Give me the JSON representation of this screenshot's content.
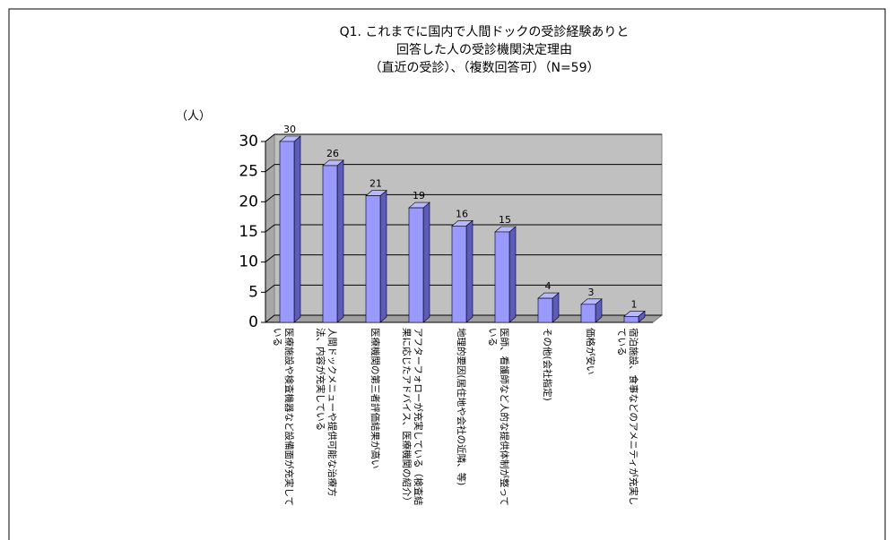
{
  "chart_data": {
    "type": "bar",
    "title": [
      "Q1. これまでに国内で人間ドックの受診経験ありと",
      "回答した人の受診機関決定理由",
      "（直近の受診）、（複数回答可）（N=59）"
    ],
    "y_label": "（人）",
    "categories": [
      "医療施設や検査機器など設備面が充実している",
      "人間ドックメニューや提供可能な治療方法、内容が充実している",
      "医療機関の第三者評価結果が高い",
      "アフターフォローが充実している（検査結果に応じたアドバイス、医療機関の紹介）",
      "地理的要因(居住地や会社の近隣、等)",
      "医師、看護師など人的な提供体制が整っている",
      "その他(会社指定)",
      "価格が安い",
      "宿泊施設、食事などのアメニティが充実している"
    ],
    "values": [
      30,
      26,
      21,
      19,
      16,
      15,
      4,
      3,
      1
    ],
    "color": "#9999ff",
    "ylim": [
      0,
      30
    ],
    "yticks": [
      0,
      5,
      10,
      15,
      20,
      25,
      30
    ],
    "grid": true
  }
}
